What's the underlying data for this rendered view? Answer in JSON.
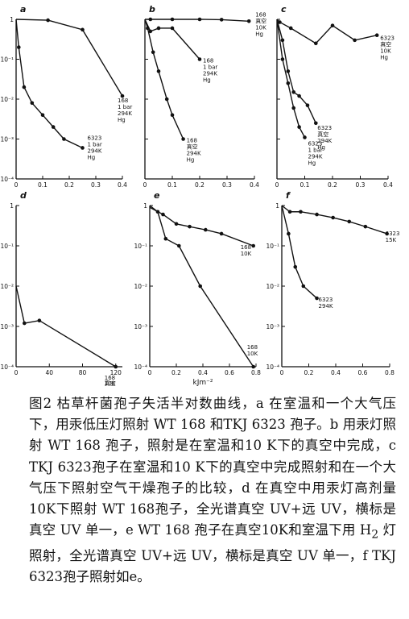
{
  "chart_data": [
    {
      "type": "line",
      "panel": "a",
      "x_scale": "linear",
      "y_scale": "log",
      "xlim": [
        0,
        0.4
      ],
      "ylim": [
        0.0001,
        1
      ],
      "xticks": [
        0,
        0.1,
        0.2,
        0.3,
        0.4
      ],
      "xtick_labels": [
        "0",
        "0.1",
        "0.2",
        "0.3",
        "0.4"
      ],
      "ytick_labels": [
        "1",
        "10⁻¹",
        "10⁻²",
        "10⁻³",
        "10⁻⁴"
      ],
      "series": [
        {
          "x": [
            0,
            0.12,
            0.25,
            0.4
          ],
          "y": [
            1,
            0.95,
            0.55,
            0.012
          ],
          "label": [
            "168",
            "1 bar",
            "294K",
            "Hg"
          ]
        },
        {
          "x": [
            0,
            0.01,
            0.03,
            0.06,
            0.1,
            0.14,
            0.18,
            0.25
          ],
          "y": [
            1,
            0.2,
            0.02,
            0.008,
            0.004,
            0.002,
            0.001,
            0.0006
          ],
          "label": [
            "6323",
            "1 bar",
            "294K",
            "Hg"
          ]
        }
      ]
    },
    {
      "type": "line",
      "panel": "b",
      "x_scale": "linear",
      "y_scale": "log",
      "xlim": [
        0,
        0.4
      ],
      "ylim": [
        0.0001,
        1
      ],
      "xticks": [
        0,
        0.1,
        0.2,
        0.3,
        0.4
      ],
      "xtick_labels": [
        "0",
        "0.1",
        "0.2",
        "0.3",
        "0.4"
      ],
      "ytick_labels": [],
      "series": [
        {
          "x": [
            0,
            0.02,
            0.1,
            0.2,
            0.28,
            0.38
          ],
          "y": [
            1,
            1,
            1,
            1,
            0.98,
            0.9
          ],
          "label": [
            "168",
            "真空",
            "10K",
            "Hg"
          ]
        },
        {
          "x": [
            0,
            0.02,
            0.05,
            0.1,
            0.2
          ],
          "y": [
            1,
            0.5,
            0.6,
            0.6,
            0.1
          ],
          "label": [
            "168",
            "1 bar",
            "294K",
            "Hg"
          ]
        },
        {
          "x": [
            0,
            0.01,
            0.03,
            0.05,
            0.08,
            0.1,
            0.14
          ],
          "y": [
            1,
            0.6,
            0.15,
            0.05,
            0.01,
            0.004,
            0.001
          ],
          "label": [
            "168",
            "真空",
            "294K",
            "Hg"
          ]
        }
      ]
    },
    {
      "type": "line",
      "panel": "c",
      "x_scale": "linear",
      "y_scale": "log",
      "xlim": [
        0,
        0.4
      ],
      "ylim": [
        0.0001,
        1
      ],
      "xticks": [
        0,
        0.1,
        0.2,
        0.3,
        0.4
      ],
      "xtick_labels": [
        "0",
        "0.1",
        "0.2",
        "0.3",
        "0.4"
      ],
      "ytick_labels": [],
      "series": [
        {
          "x": [
            0,
            0.01,
            0.05,
            0.14,
            0.2,
            0.28,
            0.36
          ],
          "y": [
            1,
            0.85,
            0.6,
            0.25,
            0.7,
            0.3,
            0.4
          ],
          "label": [
            "6323",
            "真空",
            "10K",
            "Hg"
          ]
        },
        {
          "x": [
            0,
            0.02,
            0.04,
            0.06,
            0.08,
            0.11,
            0.14
          ],
          "y": [
            1,
            0.3,
            0.05,
            0.015,
            0.012,
            0.007,
            0.0025
          ],
          "label": [
            "6323",
            "真空",
            "294K",
            "Hg"
          ]
        },
        {
          "x": [
            0,
            0.02,
            0.04,
            0.06,
            0.08,
            0.1
          ],
          "y": [
            1,
            0.1,
            0.025,
            0.006,
            0.002,
            0.0011
          ],
          "label": [
            "6323",
            "1 bar",
            "294K",
            "Hg"
          ]
        }
      ]
    },
    {
      "type": "line",
      "panel": "d",
      "x_scale": "linear",
      "y_scale": "log",
      "xlim": [
        0,
        128
      ],
      "ylim": [
        0.0001,
        1
      ],
      "xticks": [
        0,
        40,
        80,
        120
      ],
      "xtick_labels": [
        "0",
        "40",
        "80",
        "120"
      ],
      "ytick_labels": [
        "1",
        "10⁻¹",
        "10⁻²",
        "10⁻³",
        "10⁻⁴"
      ],
      "series": [
        {
          "x": [
            0,
            10,
            28,
            120
          ],
          "y": [
            0.01,
            0.0012,
            0.0014,
            0.0001
          ],
          "label": [
            "168",
            "真空",
            "10K"
          ]
        }
      ]
    },
    {
      "type": "line",
      "panel": "e",
      "x_scale": "linear",
      "y_scale": "log",
      "xlim": [
        0,
        0.8
      ],
      "ylim": [
        0.0001,
        1
      ],
      "xticks": [
        0,
        0.2,
        0.4,
        0.6,
        0.8
      ],
      "xtick_labels": [
        "0",
        "0.2",
        "0.4",
        "0.6",
        "0.8"
      ],
      "ytick_labels": [
        "1",
        "10⁻¹",
        "10⁻²",
        "10⁻³",
        "10⁻⁴"
      ],
      "xlabel": "kJm⁻²",
      "series": [
        {
          "x": [
            0,
            0.1,
            0.2,
            0.3,
            0.42,
            0.54,
            0.78
          ],
          "y": [
            0.9,
            0.6,
            0.35,
            0.3,
            0.25,
            0.2,
            0.1
          ],
          "label": [
            "168",
            "10K"
          ]
        },
        {
          "x": [
            0,
            0.06,
            0.12,
            0.22,
            0.38,
            0.78
          ],
          "y": [
            1,
            0.7,
            0.15,
            0.1,
            0.01,
            0.0001
          ],
          "label": [
            "168",
            "10K"
          ]
        }
      ]
    },
    {
      "type": "line",
      "panel": "f",
      "x_scale": "linear",
      "y_scale": "log",
      "xlim": [
        0,
        0.8
      ],
      "ylim": [
        0.0001,
        1
      ],
      "xticks": [
        0,
        0.2,
        0.4,
        0.6,
        0.8
      ],
      "xtick_labels": [
        "0",
        "0.2",
        "0.4",
        "0.6",
        "0.8"
      ],
      "ytick_labels": [
        "1",
        "10⁻¹",
        "10⁻²",
        "10⁻³",
        "10⁻⁴"
      ],
      "series": [
        {
          "x": [
            0,
            0.06,
            0.14,
            0.26,
            0.38,
            0.5,
            0.62,
            0.78
          ],
          "y": [
            1,
            0.7,
            0.7,
            0.6,
            0.5,
            0.4,
            0.3,
            0.2
          ],
          "label": [
            "6323",
            "15K"
          ]
        },
        {
          "x": [
            0,
            0.05,
            0.1,
            0.16,
            0.26
          ],
          "y": [
            1,
            0.2,
            0.03,
            0.01,
            0.005
          ],
          "label": [
            "6323",
            "294K"
          ]
        }
      ]
    }
  ],
  "caption": {
    "figure_label": "图2",
    "parts": [
      "枯草杆菌孢子失活半对数曲线，a 在室温和一个大气压下，用汞低压灯照射 WT 168 和TKJ 6323 孢子。b 用汞灯照射 WT 168 孢子，照射是在室温和10 K下的真空中完成，c TKJ 6323孢子在室温和10 K下的真空中完成照射和在一个大气压下照射空气干燥孢子的比较，d 在真空中用汞灯高剂量10K下照射 WT 168孢子，全光谱真空 UV+远 UV，横标是真空 UV 单一，e WT 168 孢子在真空10K和室温下用 H",
      "2",
      " 灯照射，全光谱真空 UV+远 UV，横标是真空 UV 单一，f TKJ 6323孢子照射如e。"
    ]
  }
}
